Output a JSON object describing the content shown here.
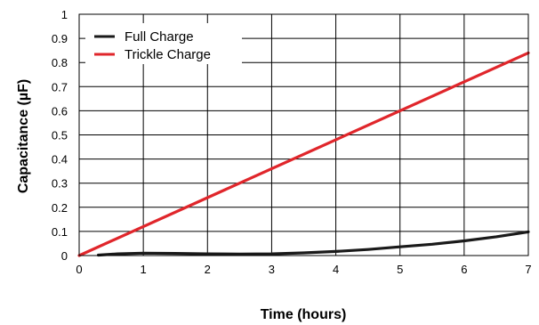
{
  "chart_data": {
    "type": "line",
    "title": "",
    "xlabel": "Time (hours)",
    "ylabel": "Capacitance (µF)",
    "xlim": [
      0,
      7
    ],
    "ylim": [
      0,
      1
    ],
    "xticks": [
      0,
      1,
      2,
      3,
      4,
      5,
      6,
      7
    ],
    "yticks": [
      0,
      0.1,
      0.2,
      0.3,
      0.4,
      0.5,
      0.6,
      0.7,
      0.8,
      0.9,
      1
    ],
    "x_tick_labels": [
      "0",
      "1",
      "2",
      "3",
      "4",
      "5",
      "6",
      "7"
    ],
    "y_tick_labels": [
      "0",
      "0.1",
      "0.2",
      "0.3",
      "0.4",
      "0.5",
      "0.6",
      "0.7",
      "0.8",
      "0.9",
      "1"
    ],
    "grid": true,
    "legend_position": "top-left",
    "series": [
      {
        "name": "Full Charge",
        "color": "#1a1a1a",
        "x": [
          0.3,
          0.6,
          1.0,
          1.5,
          2.0,
          2.5,
          3.0,
          3.5,
          4.0,
          4.5,
          5.0,
          5.5,
          6.0,
          6.5,
          7.0
        ],
        "y": [
          0.002,
          0.007,
          0.01,
          0.009,
          0.007,
          0.006,
          0.007,
          0.011,
          0.017,
          0.025,
          0.036,
          0.047,
          0.061,
          0.078,
          0.098
        ]
      },
      {
        "name": "Trickle Charge",
        "color": "#e0262b",
        "x": [
          0,
          7
        ],
        "y": [
          0,
          0.84
        ]
      }
    ]
  }
}
